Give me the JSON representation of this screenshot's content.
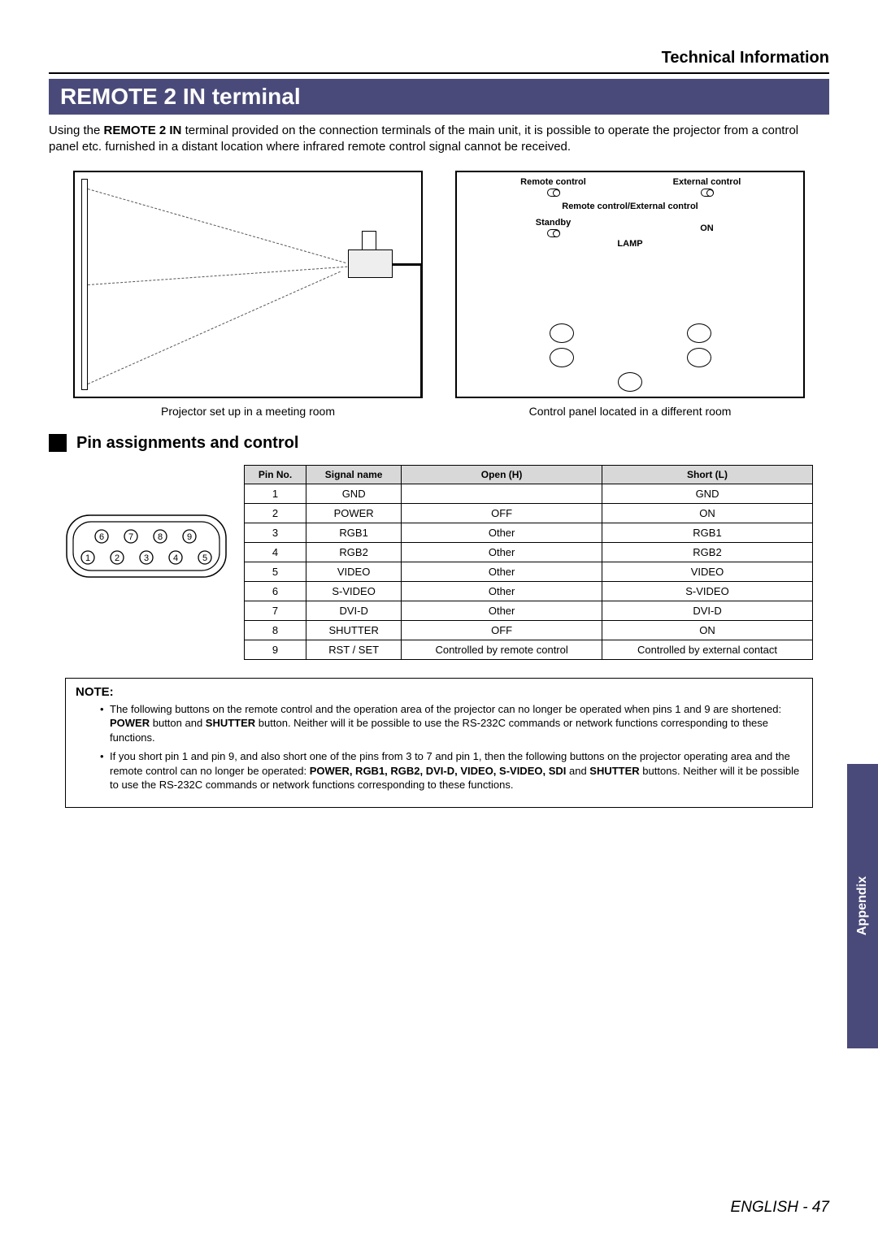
{
  "header": {
    "title": "Technical Information"
  },
  "section": {
    "title": "REMOTE 2 IN terminal"
  },
  "intro": {
    "pre": "Using the ",
    "bold": "REMOTE 2 IN",
    "post": " terminal provided on the connection terminals of the main unit, it is possible to operate the projector from a control panel etc. furnished in a distant location where infrared remote control signal cannot be received."
  },
  "diagram_left": {
    "caption": "Projector set up in a meeting room"
  },
  "diagram_right": {
    "caption": "Control panel located in a different room",
    "labels": {
      "remote_control": "Remote control",
      "external_control": "External control",
      "combined": "Remote control/External control",
      "standby": "Standby",
      "on": "ON",
      "lamp": "LAMP"
    }
  },
  "subsection": {
    "title": "Pin assignments and control"
  },
  "connector": {
    "top_pins": [
      "6",
      "7",
      "8",
      "9"
    ],
    "bottom_pins": [
      "1",
      "2",
      "3",
      "4",
      "5"
    ]
  },
  "pin_table": {
    "columns": [
      "Pin No.",
      "Signal name",
      "Open (H)",
      "Short (L)"
    ],
    "rows": [
      [
        "1",
        "GND",
        "",
        "GND"
      ],
      [
        "2",
        "POWER",
        "OFF",
        "ON"
      ],
      [
        "3",
        "RGB1",
        "Other",
        "RGB1"
      ],
      [
        "4",
        "RGB2",
        "Other",
        "RGB2"
      ],
      [
        "5",
        "VIDEO",
        "Other",
        "VIDEO"
      ],
      [
        "6",
        "S-VIDEO",
        "Other",
        "S-VIDEO"
      ],
      [
        "7",
        "DVI-D",
        "Other",
        "DVI-D"
      ],
      [
        "8",
        "SHUTTER",
        "OFF",
        "ON"
      ],
      [
        "9",
        "RST / SET",
        "Controlled by remote control",
        "Controlled by external contact"
      ]
    ],
    "header_bg": "#d8d8d8"
  },
  "note": {
    "title": "NOTE:",
    "items": [
      {
        "pre": "The following buttons on the remote control and the operation area of the projector can no longer be operated when pins 1 and 9 are shortened: ",
        "bold1": "POWER",
        "mid1": " button and ",
        "bold2": "SHUTTER",
        "post": " button. Neither will it be possible to use the RS-232C commands or network functions corresponding to these functions."
      },
      {
        "pre": "If you short pin 1 and pin 9, and also short one of the pins from 3 to 7 and pin 1, then the following buttons on the projector operating area and the remote control can no longer be operated: ",
        "bolds": "POWER, RGB1, RGB2, DVI-D, VIDEO, S-VIDEO, SDI",
        "mid": " and ",
        "bold_last": "SHUTTER",
        "post": " buttons. Neither will it be possible to use the RS-232C commands or network functions corresponding to these functions."
      }
    ]
  },
  "appendix": {
    "label": "Appendix"
  },
  "footer": {
    "lang": "ENGLISH",
    "sep": " - ",
    "page": "47"
  },
  "colors": {
    "section_bg": "#4a4a7a",
    "section_fg": "#ffffff",
    "page_bg": "#ffffff",
    "text": "#000000"
  }
}
